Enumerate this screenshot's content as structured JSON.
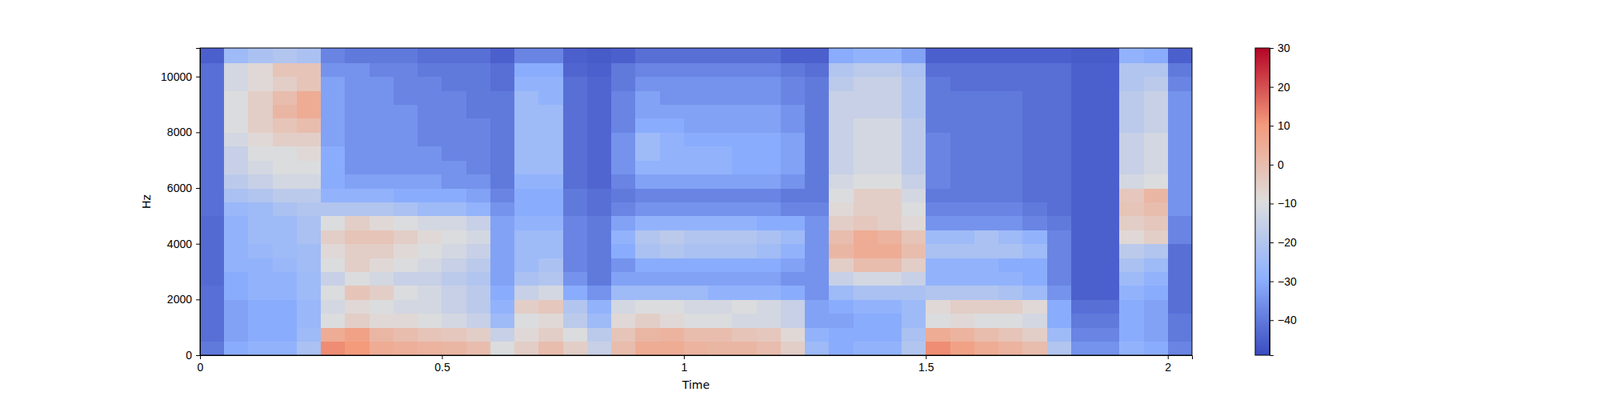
{
  "chart_data": {
    "type": "heatmap",
    "x_label": "Time",
    "y_label": "Hz",
    "xlim": [
      0,
      2.05
    ],
    "ylim": [
      0,
      11025
    ],
    "xticks": [
      0,
      0.5,
      1,
      1.5,
      2
    ],
    "yticks": [
      0,
      2000,
      4000,
      6000,
      8000,
      10000
    ],
    "x_edges": [
      0,
      0.05,
      0.1,
      0.15,
      0.2,
      0.25,
      0.3,
      0.35,
      0.4,
      0.45,
      0.5,
      0.55,
      0.6,
      0.65,
      0.7,
      0.75,
      0.8,
      0.85,
      0.9,
      0.95,
      1,
      1.05,
      1.1,
      1.15,
      1.2,
      1.25,
      1.3,
      1.35,
      1.4,
      1.45,
      1.5,
      1.55,
      1.6,
      1.65,
      1.7,
      1.75,
      1.8,
      1.85,
      1.9,
      1.95,
      2,
      2.05
    ],
    "y_edges": [
      0,
      500,
      1000,
      1500,
      2000,
      2500,
      3000,
      3500,
      4000,
      4500,
      5000,
      5500,
      6000,
      6500,
      7000,
      7500,
      8000,
      8500,
      9000,
      9500,
      10000,
      10500,
      11025
    ],
    "cells": [
      [
        -40,
        -30,
        -28,
        -28,
        -22,
        12,
        10,
        5,
        4,
        3,
        2,
        0,
        -10,
        -5,
        0,
        -5,
        -15,
        0,
        5,
        5,
        3,
        2,
        2,
        0,
        -5,
        -25,
        -30,
        -28,
        -28,
        -20,
        12,
        8,
        5,
        3,
        0,
        -20,
        -35,
        -35,
        -28,
        -30,
        -38
      ],
      [
        -42,
        -32,
        -30,
        -30,
        -25,
        5,
        8,
        2,
        0,
        -2,
        -3,
        -5,
        -15,
        -8,
        -5,
        -10,
        -18,
        -2,
        2,
        3,
        0,
        0,
        -2,
        -3,
        -8,
        -28,
        -30,
        -30,
        -30,
        -22,
        5,
        3,
        0,
        -2,
        -5,
        -25,
        -38,
        -38,
        -30,
        -32,
        -40
      ],
      [
        -42,
        -32,
        -30,
        -30,
        -26,
        -10,
        -5,
        -8,
        -8,
        -10,
        -12,
        -15,
        -25,
        -10,
        -8,
        -18,
        -25,
        -8,
        -5,
        -8,
        -10,
        -10,
        -12,
        -12,
        -15,
        -32,
        -32,
        -30,
        -30,
        -25,
        -10,
        -8,
        -10,
        -10,
        -12,
        -30,
        -40,
        -40,
        -30,
        -32,
        -40
      ],
      [
        -42,
        -32,
        -30,
        -30,
        -26,
        -12,
        -8,
        -10,
        -12,
        -12,
        -15,
        -18,
        -28,
        -5,
        -3,
        -20,
        -28,
        -12,
        -10,
        -10,
        -12,
        -12,
        -10,
        -12,
        -15,
        -32,
        -30,
        -28,
        -28,
        -25,
        -8,
        -5,
        -5,
        -5,
        -8,
        -30,
        -42,
        -42,
        -30,
        -32,
        -42
      ],
      [
        -42,
        -30,
        -28,
        -28,
        -25,
        -10,
        -2,
        -5,
        -10,
        -12,
        -15,
        -18,
        -30,
        -15,
        -12,
        -30,
        -35,
        -25,
        -25,
        -25,
        -25,
        -28,
        -28,
        -28,
        -30,
        -35,
        -25,
        -22,
        -22,
        -22,
        -20,
        -20,
        -20,
        -22,
        -25,
        -35,
        -45,
        -45,
        -28,
        -30,
        -42
      ],
      [
        -43,
        -30,
        -28,
        -28,
        -25,
        -15,
        -10,
        -12,
        -15,
        -15,
        -18,
        -20,
        -32,
        -22,
        -20,
        -35,
        -40,
        -32,
        -32,
        -32,
        -32,
        -32,
        -32,
        -32,
        -35,
        -35,
        -15,
        -12,
        -12,
        -15,
        -28,
        -28,
        -28,
        -28,
        -30,
        -38,
        -45,
        -45,
        -25,
        -28,
        -42
      ],
      [
        -43,
        -28,
        -28,
        -26,
        -24,
        -10,
        -5,
        -8,
        -10,
        -12,
        -15,
        -18,
        -32,
        -25,
        -22,
        -38,
        -40,
        -35,
        -30,
        -30,
        -30,
        -30,
        -30,
        -30,
        -32,
        -35,
        -5,
        0,
        0,
        -5,
        -28,
        -28,
        -28,
        -30,
        -30,
        -38,
        -45,
        -45,
        -22,
        -25,
        -42
      ],
      [
        -43,
        -28,
        -26,
        -25,
        -24,
        -8,
        -5,
        -5,
        -8,
        -10,
        -12,
        -15,
        -32,
        -25,
        -25,
        -38,
        -40,
        -30,
        -22,
        -20,
        -22,
        -22,
        -22,
        -24,
        -28,
        -35,
        2,
        5,
        5,
        0,
        -22,
        -22,
        -22,
        -22,
        -25,
        -38,
        -45,
        -45,
        -18,
        -20,
        -42
      ],
      [
        -43,
        -28,
        -25,
        -25,
        -22,
        -5,
        -2,
        -2,
        -5,
        -8,
        -10,
        -12,
        -32,
        -25,
        -25,
        -38,
        -40,
        -28,
        -20,
        -18,
        -20,
        -20,
        -20,
        -22,
        -25,
        -35,
        0,
        5,
        3,
        -2,
        -25,
        -25,
        -22,
        -25,
        -28,
        -38,
        -45,
        -45,
        -8,
        -5,
        -38
      ],
      [
        -43,
        -28,
        -25,
        -25,
        -22,
        -10,
        -5,
        -8,
        -10,
        -12,
        -12,
        -15,
        -32,
        -28,
        -28,
        -38,
        -40,
        -32,
        -28,
        -28,
        -28,
        -28,
        -28,
        -30,
        -30,
        -35,
        -5,
        -3,
        -5,
        -8,
        -35,
        -35,
        -35,
        -35,
        -38,
        -40,
        -45,
        -45,
        -5,
        -3,
        -38
      ],
      [
        -42,
        -26,
        -25,
        -22,
        -20,
        -20,
        -20,
        -20,
        -22,
        -25,
        -25,
        -28,
        -35,
        -30,
        -30,
        -40,
        -42,
        -38,
        -35,
        -35,
        -35,
        -35,
        -35,
        -35,
        -38,
        -38,
        -8,
        -5,
        -5,
        -10,
        -38,
        -38,
        -38,
        -38,
        -40,
        -42,
        -45,
        -45,
        -2,
        0,
        -35
      ],
      [
        -42,
        -22,
        -20,
        -18,
        -18,
        -28,
        -28,
        -28,
        -30,
        -30,
        -30,
        -32,
        -38,
        -30,
        -30,
        -40,
        -42,
        -40,
        -38,
        -38,
        -38,
        -38,
        -38,
        -38,
        -40,
        -40,
        -10,
        -5,
        -5,
        -12,
        -40,
        -40,
        -40,
        -40,
        -42,
        -42,
        -45,
        -45,
        -3,
        2,
        -35
      ],
      [
        -42,
        -18,
        -15,
        -12,
        -12,
        -30,
        -32,
        -32,
        -32,
        -32,
        -35,
        -35,
        -40,
        -28,
        -28,
        -42,
        -44,
        -38,
        -32,
        -32,
        -32,
        -32,
        -32,
        -32,
        -35,
        -40,
        -12,
        -10,
        -10,
        -15,
        -38,
        -40,
        -40,
        -40,
        -42,
        -42,
        -45,
        -45,
        -12,
        -10,
        -35
      ],
      [
        -42,
        -15,
        -12,
        -10,
        -10,
        -30,
        -35,
        -35,
        -35,
        -35,
        -35,
        -38,
        -40,
        -25,
        -25,
        -42,
        -44,
        -35,
        -28,
        -28,
        -28,
        -28,
        -30,
        -30,
        -32,
        -40,
        -15,
        -12,
        -12,
        -18,
        -38,
        -40,
        -40,
        -40,
        -42,
        -42,
        -45,
        -45,
        -15,
        -12,
        -35
      ],
      [
        -42,
        -15,
        -10,
        -10,
        -8,
        -30,
        -35,
        -35,
        -35,
        -35,
        -38,
        -38,
        -40,
        -25,
        -25,
        -42,
        -44,
        -35,
        -25,
        -28,
        -28,
        -28,
        -30,
        -30,
        -32,
        -40,
        -15,
        -12,
        -12,
        -18,
        -38,
        -40,
        -40,
        -40,
        -42,
        -42,
        -45,
        -45,
        -15,
        -12,
        -35
      ],
      [
        -42,
        -12,
        -8,
        -5,
        -5,
        -32,
        -35,
        -35,
        -35,
        -38,
        -38,
        -38,
        -40,
        -25,
        -25,
        -42,
        -44,
        -35,
        -25,
        -28,
        -30,
        -30,
        -30,
        -30,
        -32,
        -40,
        -15,
        -12,
        -12,
        -18,
        -38,
        -40,
        -40,
        -40,
        -42,
        -42,
        -45,
        -45,
        -15,
        -12,
        -35
      ],
      [
        -42,
        -10,
        -5,
        -2,
        0,
        -32,
        -35,
        -35,
        -35,
        -38,
        -38,
        -38,
        -40,
        -25,
        -25,
        -42,
        -44,
        -38,
        -30,
        -30,
        -32,
        -32,
        -32,
        -32,
        -35,
        -40,
        -15,
        -12,
        -12,
        -18,
        -40,
        -40,
        -40,
        -40,
        -42,
        -42,
        -45,
        -45,
        -18,
        -15,
        -35
      ],
      [
        -42,
        -10,
        -5,
        2,
        5,
        -32,
        -35,
        -35,
        -35,
        -38,
        -38,
        -40,
        -40,
        -25,
        -25,
        -42,
        -44,
        -38,
        -32,
        -32,
        -32,
        -32,
        -32,
        -32,
        -35,
        -40,
        -15,
        -15,
        -15,
        -20,
        -40,
        -40,
        -40,
        -40,
        -42,
        -42,
        -45,
        -45,
        -18,
        -15,
        -35
      ],
      [
        -42,
        -10,
        -5,
        0,
        5,
        -32,
        -35,
        -35,
        -38,
        -38,
        -38,
        -40,
        -40,
        -25,
        -28,
        -42,
        -44,
        -38,
        -32,
        -35,
        -35,
        -35,
        -35,
        -35,
        -38,
        -40,
        -15,
        -15,
        -15,
        -20,
        -40,
        -40,
        -40,
        -40,
        -42,
        -42,
        -45,
        -45,
        -18,
        -15,
        -35
      ],
      [
        -42,
        -12,
        -8,
        -5,
        -2,
        -32,
        -35,
        -35,
        -38,
        -38,
        -40,
        -40,
        -42,
        -28,
        -28,
        -42,
        -44,
        -40,
        -35,
        -35,
        -35,
        -35,
        -35,
        -35,
        -38,
        -40,
        -18,
        -15,
        -15,
        -20,
        -40,
        -42,
        -42,
        -42,
        -42,
        -42,
        -45,
        -45,
        -20,
        -18,
        -38
      ],
      [
        -42,
        -12,
        -8,
        -2,
        -2,
        -35,
        -35,
        -38,
        -38,
        -40,
        -40,
        -40,
        -42,
        -30,
        -30,
        -44,
        -45,
        -40,
        -38,
        -38,
        -38,
        -38,
        -38,
        -38,
        -40,
        -42,
        -20,
        -18,
        -18,
        -22,
        -42,
        -42,
        -42,
        -42,
        -42,
        -42,
        -45,
        -45,
        -20,
        -20,
        -40
      ],
      [
        -45,
        -25,
        -22,
        -20,
        -22,
        -38,
        -40,
        -40,
        -40,
        -42,
        -42,
        -42,
        -45,
        -38,
        -38,
        -45,
        -46,
        -45,
        -42,
        -42,
        -42,
        -42,
        -42,
        -42,
        -45,
        -45,
        -30,
        -28,
        -28,
        -32,
        -45,
        -45,
        -45,
        -45,
        -45,
        -45,
        -46,
        -46,
        -28,
        -30,
        -45
      ]
    ],
    "clim": [
      -49,
      30
    ],
    "cticks": [
      {
        "value": -40,
        "label": "−40"
      },
      {
        "value": -30,
        "label": "−30"
      },
      {
        "value": -20,
        "label": "−20"
      },
      {
        "value": -10,
        "label": "−10"
      },
      0,
      10,
      20,
      30
    ]
  }
}
